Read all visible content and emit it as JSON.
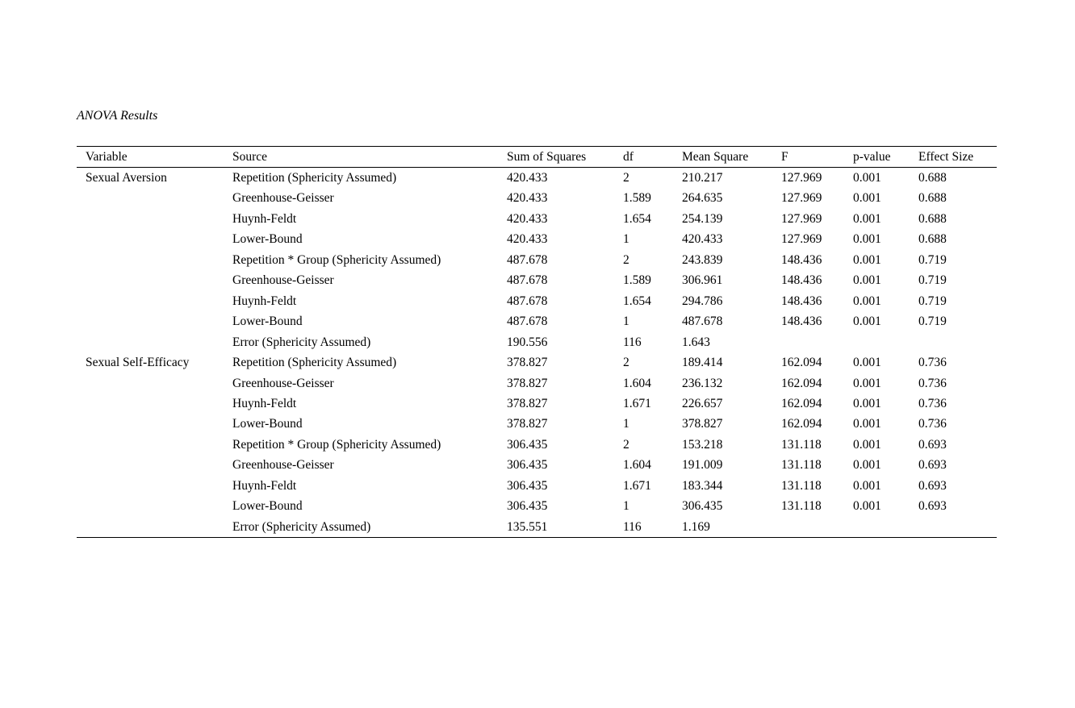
{
  "page": {
    "title": "ANOVA Results"
  },
  "table": {
    "columns": [
      "Variable",
      "Source",
      "Sum of Squares",
      "df",
      "Mean Square",
      "F",
      "p-value",
      "Effect Size"
    ],
    "rows": [
      [
        "Sexual Aversion",
        "Repetition (Sphericity Assumed)",
        "420.433",
        "2",
        "210.217",
        "127.969",
        "0.001",
        "0.688"
      ],
      [
        "",
        "Greenhouse-Geisser",
        "420.433",
        "1.589",
        "264.635",
        "127.969",
        "0.001",
        "0.688"
      ],
      [
        "",
        "Huynh-Feldt",
        "420.433",
        "1.654",
        "254.139",
        "127.969",
        "0.001",
        "0.688"
      ],
      [
        "",
        "Lower-Bound",
        "420.433",
        "1",
        "420.433",
        "127.969",
        "0.001",
        "0.688"
      ],
      [
        "",
        "Repetition * Group (Sphericity Assumed)",
        "487.678",
        "2",
        "243.839",
        "148.436",
        "0.001",
        "0.719"
      ],
      [
        "",
        "Greenhouse-Geisser",
        "487.678",
        "1.589",
        "306.961",
        "148.436",
        "0.001",
        "0.719"
      ],
      [
        "",
        "Huynh-Feldt",
        "487.678",
        "1.654",
        "294.786",
        "148.436",
        "0.001",
        "0.719"
      ],
      [
        "",
        "Lower-Bound",
        "487.678",
        "1",
        "487.678",
        "148.436",
        "0.001",
        "0.719"
      ],
      [
        "",
        "Error (Sphericity Assumed)",
        "190.556",
        "116",
        "1.643",
        "",
        "",
        ""
      ],
      [
        "Sexual Self-Efficacy",
        "Repetition (Sphericity Assumed)",
        "378.827",
        "2",
        "189.414",
        "162.094",
        "0.001",
        "0.736"
      ],
      [
        "",
        "Greenhouse-Geisser",
        "378.827",
        "1.604",
        "236.132",
        "162.094",
        "0.001",
        "0.736"
      ],
      [
        "",
        "Huynh-Feldt",
        "378.827",
        "1.671",
        "226.657",
        "162.094",
        "0.001",
        "0.736"
      ],
      [
        "",
        "Lower-Bound",
        "378.827",
        "1",
        "378.827",
        "162.094",
        "0.001",
        "0.736"
      ],
      [
        "",
        "Repetition * Group (Sphericity Assumed)",
        "306.435",
        "2",
        "153.218",
        "131.118",
        "0.001",
        "0.693"
      ],
      [
        "",
        "Greenhouse-Geisser",
        "306.435",
        "1.604",
        "191.009",
        "131.118",
        "0.001",
        "0.693"
      ],
      [
        "",
        "Huynh-Feldt",
        "306.435",
        "1.671",
        "183.344",
        "131.118",
        "0.001",
        "0.693"
      ],
      [
        "",
        "Lower-Bound",
        "306.435",
        "1",
        "306.435",
        "131.118",
        "0.001",
        "0.693"
      ],
      [
        "",
        "Error (Sphericity Assumed)",
        "135.551",
        "116",
        "1.169",
        "",
        "",
        ""
      ]
    ]
  }
}
